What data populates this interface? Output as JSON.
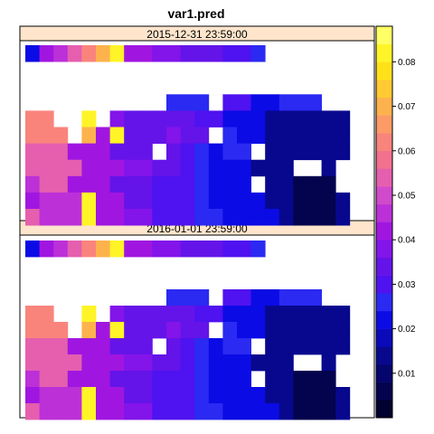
{
  "chart_data": {
    "type": "heatmap",
    "title": "var1.pred",
    "panels": [
      {
        "label": "2015-12-31 23:59:00",
        "rows": [
          "abcdefghhiijjjkkl......",
          ".......................",
          ".......................",
          "..........lll.kkmmlll..",
          "ee..g.ijjjjjkkmmmrrrrss",
          "eee.fhgjjjijj.lmmrrrsss",
          "dddhhhjjj.jklnll.rsssss",
          "ddddhhhiijjklnmmrrr..s.",
          "cddhhhjjjkkklnnm.rsttt.",
          "bcccghhjjkkklnnmnrstuus",
          "dcccghhiikkkllnnnnrtuus"
        ]
      },
      {
        "label": "2016-01-01 23:59:00",
        "rows": [
          "abcdefghhiijjjkkl......",
          ".......................",
          ".......................",
          "..........lll.kkmmlll..",
          "ee..g.ijjjjjkkmmmrrrrss",
          "eee.fhgjjjijj.lmmrrrsss",
          "dddhhhjjj.jklnll.rsssss",
          "ddddhhhiijjklnmmrrr..s.",
          "cddhhhjjjkkklnnm.rsttt.",
          "bcccghhjjkkklnnmnrstuus",
          "dcccghhiikkkllnnnnrtuus"
        ]
      }
    ],
    "cell_values": {
      "a": 0.02,
      "b": 0.04,
      "c": 0.045,
      "d": 0.052,
      "e": 0.06,
      "f": 0.07,
      "g": 0.08,
      "h": 0.042,
      "i": 0.038,
      "j": 0.033,
      "k": 0.03,
      "l": 0.027,
      "m": 0.022,
      "n": 0.02,
      "r": 0.014,
      "s": 0.012,
      "t": 0.006,
      "u": 0.004
    },
    "colorbar": {
      "min": 0.0,
      "max": 0.088,
      "ticks": [
        0.01,
        0.02,
        0.03,
        0.04,
        0.05,
        0.06,
        0.07,
        0.08
      ],
      "tick_labels": [
        "0.01",
        "0.02",
        "0.03",
        "0.04",
        "0.05",
        "0.06",
        "0.07",
        "0.08"
      ],
      "palette": [
        "#02002E",
        "#03034E",
        "#05056E",
        "#08088E",
        "#0A0ABB",
        "#0B0BE5",
        "#2A2AF2",
        "#4F12F0",
        "#6414E8",
        "#8314EA",
        "#A016E0",
        "#BC30D8",
        "#D14ACB",
        "#E55FAE",
        "#F2718F",
        "#F9847C",
        "#FC9B66",
        "#FDB24D",
        "#FFCA33",
        "#FFE11A",
        "#FFF427",
        "#FFFF66"
      ]
    }
  }
}
